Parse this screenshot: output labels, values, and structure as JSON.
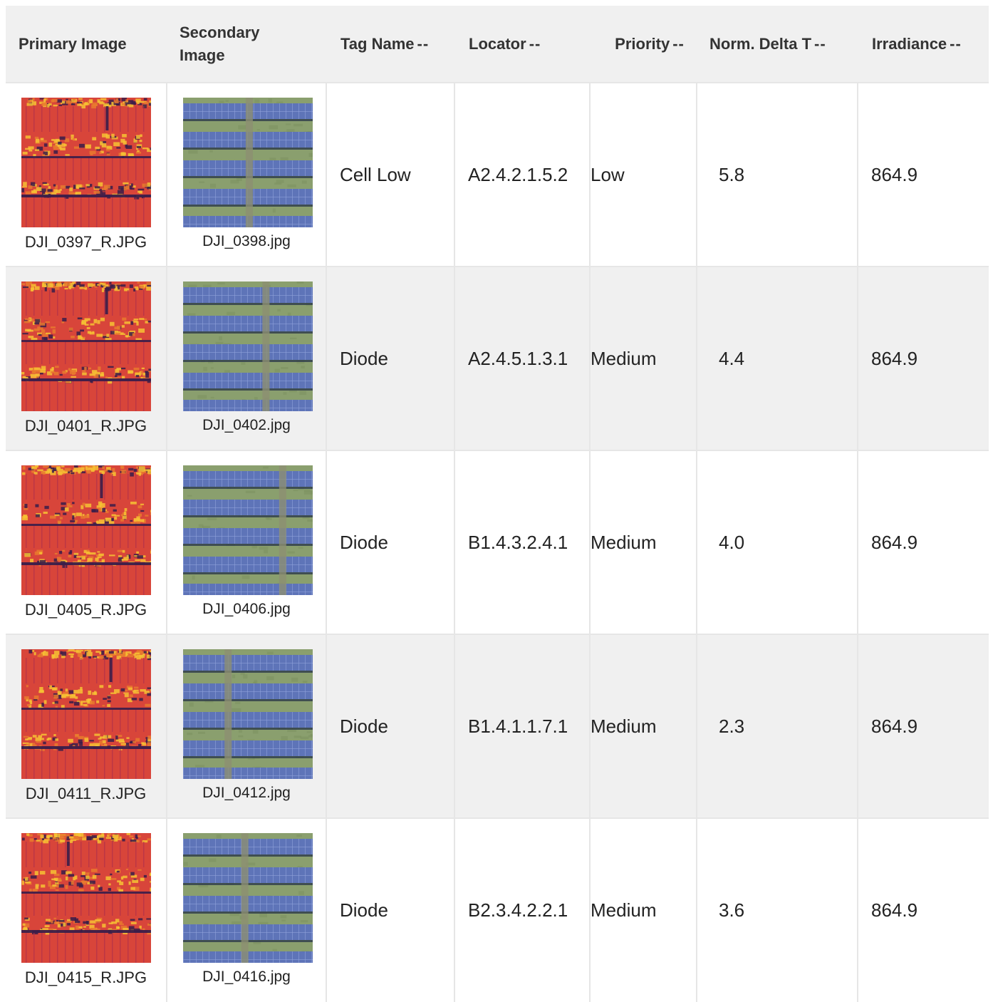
{
  "columns": {
    "primary": "Primary Image",
    "secondary": "Secondary Image",
    "tag": "Tag Name",
    "locator": "Locator",
    "priority": "Priority",
    "norm_delta": "Norm. Delta T",
    "irradiance": "Irradiance",
    "sort_icon": "--"
  },
  "rows": [
    {
      "primary": "DJI_0397_R.JPG",
      "secondary": "DJI_0398.jpg",
      "tag": "Cell Low",
      "locator": "A2.4.2.1.5.2",
      "priority": "Low",
      "norm_delta": "5.8",
      "irradiance": "864.9"
    },
    {
      "primary": "DJI_0401_R.JPG",
      "secondary": "DJI_0402.jpg",
      "tag": "Diode",
      "locator": "A2.4.5.1.3.1",
      "priority": "Medium",
      "norm_delta": "4.4",
      "irradiance": "864.9"
    },
    {
      "primary": "DJI_0405_R.JPG",
      "secondary": "DJI_0406.jpg",
      "tag": "Diode",
      "locator": "B1.4.3.2.4.1",
      "priority": "Medium",
      "norm_delta": "4.0",
      "irradiance": "864.9"
    },
    {
      "primary": "DJI_0411_R.JPG",
      "secondary": "DJI_0412.jpg",
      "tag": "Diode",
      "locator": "B1.4.1.1.7.1",
      "priority": "Medium",
      "norm_delta": "2.3",
      "irradiance": "864.9"
    },
    {
      "primary": "DJI_0415_R.JPG",
      "secondary": "DJI_0416.jpg",
      "tag": "Diode",
      "locator": "B2.3.4.2.2.1",
      "priority": "Medium",
      "norm_delta": "3.6",
      "irradiance": "864.9"
    }
  ],
  "colors": {
    "header_bg": "#f0f0f0",
    "row_alt_bg": "#f0f0f0",
    "thermal_base": "#d8453a",
    "thermal_hot": "#f7c234",
    "thermal_cold": "#3a1d4a",
    "panel_blue": "#5e74b8",
    "grass_green": "#8a9f6e"
  }
}
